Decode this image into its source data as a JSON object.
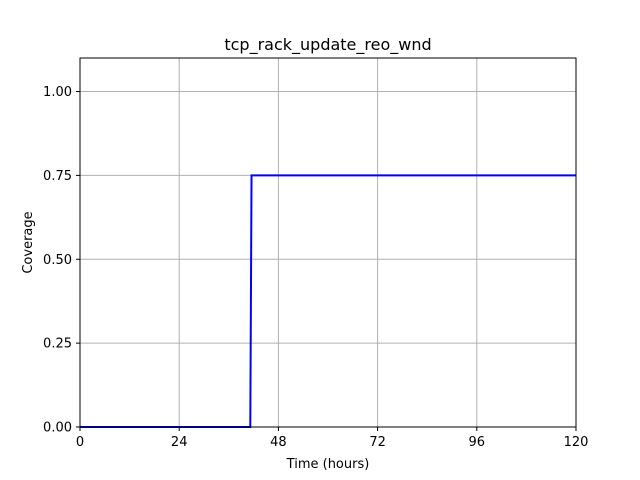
{
  "chart_data": {
    "type": "line",
    "title": "tcp_rack_update_reo_wnd",
    "xlabel": "Time (hours)",
    "ylabel": "Coverage",
    "xlim": [
      0,
      120
    ],
    "ylim": [
      0,
      1.1
    ],
    "x_ticks": [
      0,
      24,
      48,
      72,
      96,
      120
    ],
    "y_ticks": [
      0.0,
      0.25,
      0.5,
      0.75,
      1.0
    ],
    "x_tick_labels": [
      "0",
      "24",
      "48",
      "72",
      "96",
      "120"
    ],
    "y_tick_labels": [
      "0.00",
      "0.25",
      "0.50",
      "0.75",
      "1.00"
    ],
    "grid": true,
    "series": [
      {
        "color": "#0000ff",
        "step": true,
        "x": [
          0,
          41.2,
          41.5,
          120
        ],
        "y": [
          0,
          0,
          0.75,
          0.75
        ]
      }
    ]
  }
}
